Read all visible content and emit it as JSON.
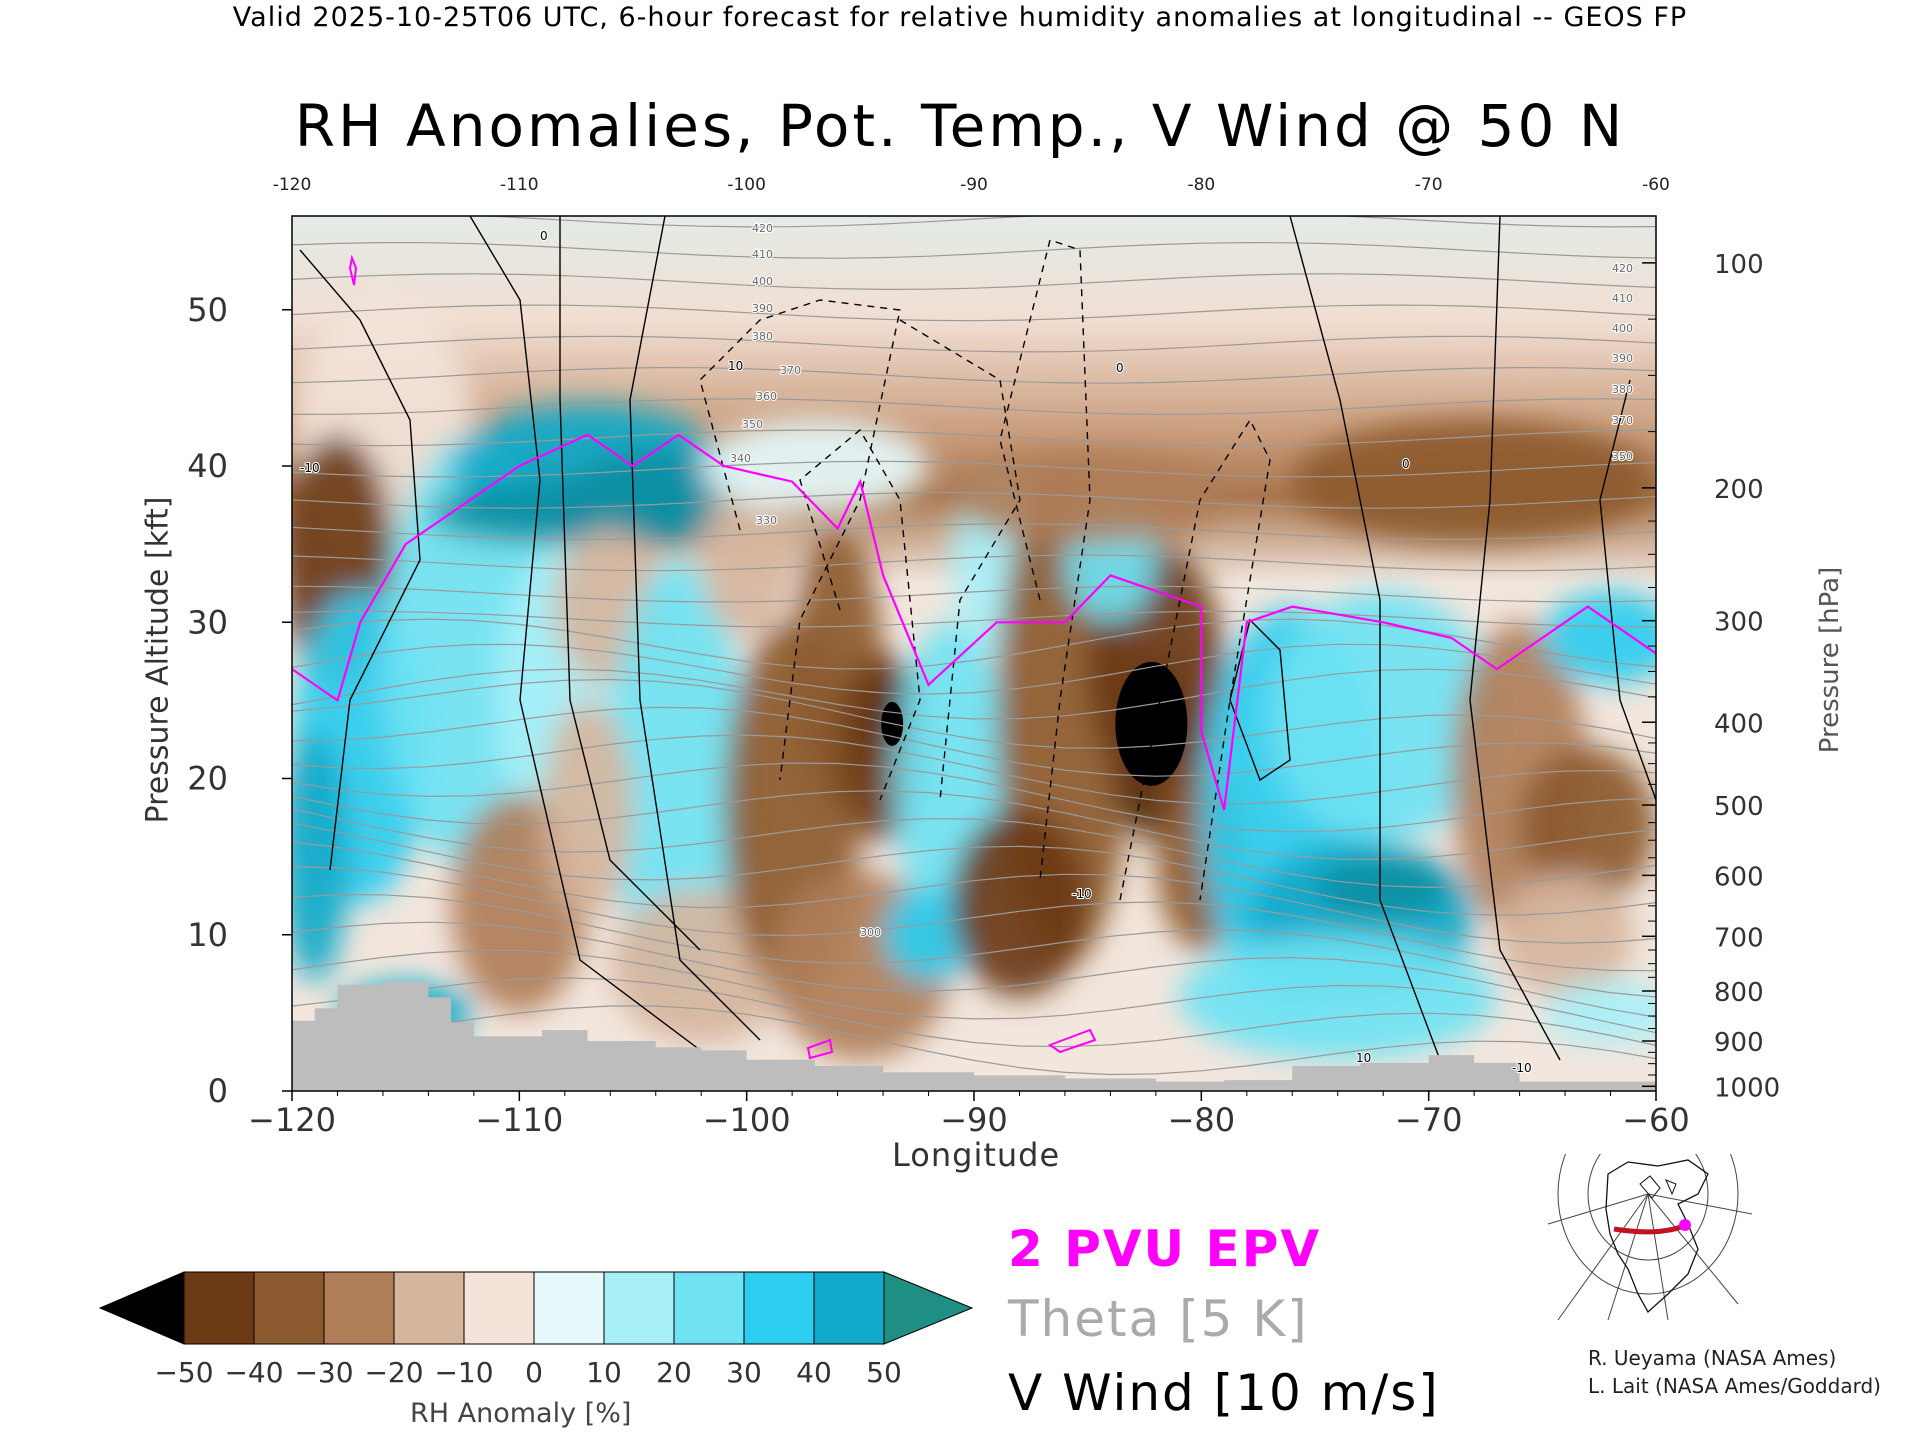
{
  "header": "Valid 2025-10-25T06 UTC, 6-hour forecast for relative humidity anomalies at longitudinal -- GEOS FP",
  "colors": {
    "epv": "#ff00ff",
    "theta": "#9a9a9a",
    "vwind": "#000000",
    "terrain": "#bdbdbd"
  },
  "chart_data": {
    "type": "heatmap",
    "title": "RH Anomalies, Pot. Temp., V Wind @ 50 N",
    "xlabel": "Longitude",
    "ylabel": "Pressure Altitude [kft]",
    "y2label": "Pressure [hPa]",
    "xlim": [
      -120,
      -60
    ],
    "ylim": [
      0,
      56
    ],
    "x_ticks": [
      -120,
      -110,
      -100,
      -90,
      -80,
      -70,
      -60
    ],
    "x_tick_labels": [
      "−120",
      "−110",
      "−100",
      "−90",
      "−80",
      "−70",
      "−60"
    ],
    "y_ticks": [
      0,
      10,
      20,
      30,
      40,
      50
    ],
    "pressure_ticks": [
      100,
      200,
      300,
      400,
      500,
      600,
      700,
      800,
      900,
      1000
    ],
    "pressure_tick_kft": [
      53,
      38.6,
      30.1,
      23.6,
      18.3,
      13.8,
      9.9,
      6.4,
      3.2,
      0.3
    ],
    "top_tick_labels": [
      "-120",
      "-110",
      "-100",
      "-90",
      "-80",
      "-70",
      "-60"
    ],
    "grid": false,
    "colorbar": {
      "label": "RH Anomaly [%]",
      "tick_labels": [
        "−50",
        "−40",
        "−30",
        "−20",
        "−10",
        "0",
        "10",
        "20",
        "30",
        "40",
        "50"
      ],
      "colors": [
        "#4a2307",
        "#6b3a14",
        "#8c5a2e",
        "#b07e59",
        "#d6b59d",
        "#f3e3d9",
        "#e5f9fb",
        "#a8f0f8",
        "#6fe3f3",
        "#2ccdef",
        "#11a9c9",
        "#098fa3"
      ],
      "under_color": "#000000",
      "over_color": "#1f8f84"
    },
    "theta_levels_K": [
      300,
      310,
      320,
      330,
      340,
      350,
      360,
      370,
      380,
      390,
      400,
      410,
      420
    ],
    "epv_2pvu_line": [
      {
        "lon": -120,
        "kft": 27
      },
      {
        "lon": -118,
        "kft": 25
      },
      {
        "lon": -117,
        "kft": 30
      },
      {
        "lon": -115,
        "kft": 35
      },
      {
        "lon": -112,
        "kft": 38
      },
      {
        "lon": -110,
        "kft": 40
      },
      {
        "lon": -107,
        "kft": 42
      },
      {
        "lon": -105,
        "kft": 40
      },
      {
        "lon": -103,
        "kft": 42
      },
      {
        "lon": -101,
        "kft": 40
      },
      {
        "lon": -98,
        "kft": 39
      },
      {
        "lon": -96,
        "kft": 36
      },
      {
        "lon": -95,
        "kft": 39
      },
      {
        "lon": -94,
        "kft": 33
      },
      {
        "lon": -92,
        "kft": 26
      },
      {
        "lon": -89,
        "kft": 30
      },
      {
        "lon": -86,
        "kft": 30
      },
      {
        "lon": -84,
        "kft": 33
      },
      {
        "lon": -82,
        "kft": 32
      },
      {
        "lon": -80,
        "kft": 31
      },
      {
        "lon": -80,
        "kft": 23
      },
      {
        "lon": -79,
        "kft": 18
      },
      {
        "lon": -78,
        "kft": 30
      },
      {
        "lon": -76,
        "kft": 31
      },
      {
        "lon": -72,
        "kft": 30
      },
      {
        "lon": -69,
        "kft": 29
      },
      {
        "lon": -67,
        "kft": 27
      },
      {
        "lon": -65,
        "kft": 29
      },
      {
        "lon": -63,
        "kft": 31
      },
      {
        "lon": -60,
        "kft": 28
      }
    ],
    "vwind_contours_ms": [
      -10,
      0,
      10
    ],
    "vwind_contour_labels": [
      "-10",
      "0",
      "10",
      "-10",
      "0",
      "10",
      "-10",
      "0"
    ],
    "theta_labels": [
      "420",
      "410",
      "400",
      "390",
      "380",
      "370",
      "360",
      "350",
      "340",
      "330",
      "300"
    ],
    "right_theta_labels": [
      "420",
      "410",
      "400",
      "390",
      "380",
      "370",
      "350"
    ],
    "terrain_kft": [
      {
        "lon": -120,
        "kft": 4.5
      },
      {
        "lon": -119,
        "kft": 5.3
      },
      {
        "lon": -118,
        "kft": 6.8
      },
      {
        "lon": -116,
        "kft": 7.0
      },
      {
        "lon": -114,
        "kft": 6.0
      },
      {
        "lon": -113,
        "kft": 4.4
      },
      {
        "lon": -112,
        "kft": 3.5
      },
      {
        "lon": -109,
        "kft": 3.9
      },
      {
        "lon": -107,
        "kft": 3.2
      },
      {
        "lon": -104,
        "kft": 2.8
      },
      {
        "lon": -102,
        "kft": 2.6
      },
      {
        "lon": -100,
        "kft": 2.0
      },
      {
        "lon": -97,
        "kft": 1.6
      },
      {
        "lon": -94,
        "kft": 1.2
      },
      {
        "lon": -90,
        "kft": 1.0
      },
      {
        "lon": -86,
        "kft": 0.8
      },
      {
        "lon": -82,
        "kft": 0.6
      },
      {
        "lon": -79,
        "kft": 0.7
      },
      {
        "lon": -76,
        "kft": 1.6
      },
      {
        "lon": -73,
        "kft": 1.8
      },
      {
        "lon": -70,
        "kft": 2.3
      },
      {
        "lon": -68,
        "kft": 1.8
      },
      {
        "lon": -66,
        "kft": 0.6
      },
      {
        "lon": -60,
        "kft": 0.3
      }
    ]
  },
  "legend": {
    "epv": "2 PVU EPV",
    "theta": "Theta [5 K]",
    "vwind": "V Wind [10 m/s]"
  },
  "credits": {
    "line1": "R. Ueyama (NASA Ames)",
    "line2": "L. Lait (NASA Ames/Goddard)"
  }
}
